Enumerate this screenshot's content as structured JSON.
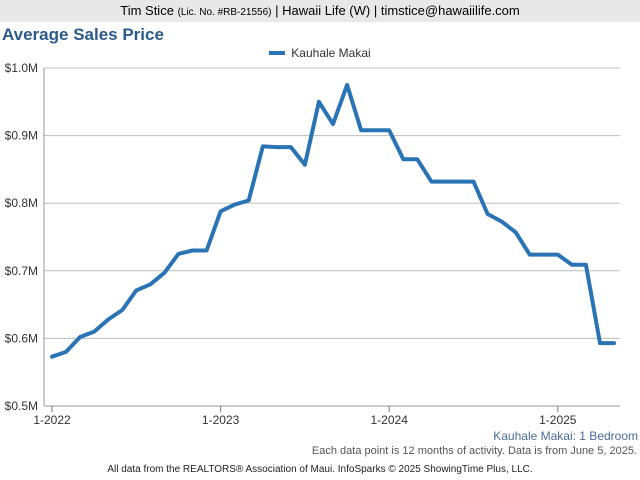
{
  "header": {
    "name": "Tim Stice",
    "license": "(Lic. No. #RB-21556)",
    "rest": "| Hawaii Life (W) | timstice@hawaiilife.com"
  },
  "chart_data": {
    "type": "line",
    "title": "Average Sales Price",
    "x_start": "2022-01",
    "x_tick_labels": [
      "1-2022",
      "1-2023",
      "1-2024",
      "1-2025"
    ],
    "y_tick_labels": [
      "$0.5M",
      "$0.6M",
      "$0.7M",
      "$0.8M",
      "$0.9M",
      "$1.0M"
    ],
    "ylim": [
      0.5,
      1.0
    ],
    "y_units": "$M",
    "grid": true,
    "legend_position": "top-center",
    "series": [
      {
        "name": "Kauhale Makai",
        "color": "#2a73b4",
        "x": [
          "2022-01",
          "2022-02",
          "2022-03",
          "2022-04",
          "2022-05",
          "2022-06",
          "2022-07",
          "2022-08",
          "2022-09",
          "2022-10",
          "2022-11",
          "2022-12",
          "2023-01",
          "2023-02",
          "2023-03",
          "2023-04",
          "2023-05",
          "2023-06",
          "2023-07",
          "2023-08",
          "2023-09",
          "2023-10",
          "2023-11",
          "2023-12",
          "2024-01",
          "2024-02",
          "2024-03",
          "2024-04",
          "2024-05",
          "2024-06",
          "2024-07",
          "2024-08",
          "2024-09",
          "2024-10",
          "2024-11",
          "2024-12",
          "2025-01",
          "2025-02",
          "2025-03",
          "2025-04",
          "2025-05"
        ],
        "values": [
          0.573,
          0.58,
          0.602,
          0.61,
          0.628,
          0.642,
          0.671,
          0.68,
          0.697,
          0.725,
          0.73,
          0.73,
          0.788,
          0.798,
          0.804,
          0.884,
          0.883,
          0.883,
          0.857,
          0.95,
          0.917,
          0.975,
          0.908,
          0.908,
          0.908,
          0.865,
          0.865,
          0.832,
          0.832,
          0.832,
          0.832,
          0.784,
          0.773,
          0.757,
          0.724,
          0.724,
          0.724,
          0.709,
          0.709,
          0.593,
          0.593
        ]
      }
    ],
    "subtitle_note": "Kauhale Makai: 1 Bedroom",
    "data_note": "Each data point is 12 months of activity. Data is from June 5, 2025."
  },
  "footer": "All data from the REALTORS® Association of Maui. InfoSparks © 2025 ShowingTime Plus, LLC."
}
